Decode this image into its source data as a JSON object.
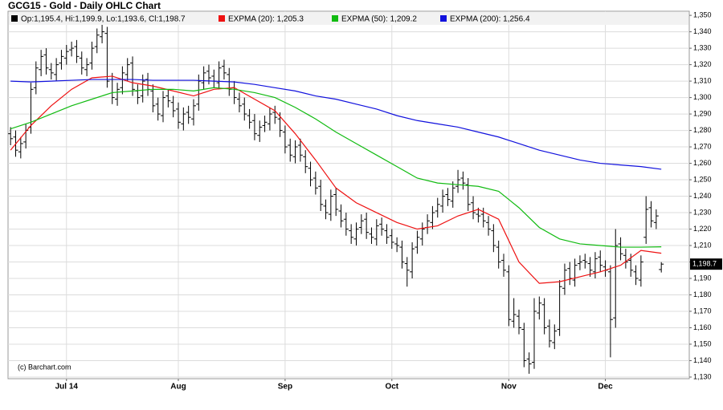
{
  "chart_data": {
    "type": "ohlc",
    "title": "GCG15 - Gold - Daily OHLC Chart",
    "annotation": "(c) Barchart.com",
    "grid": true,
    "ohlc_name": "Op:1,195.4, Hi:1,199.9, Lo:1,193.6, Cl:1,198.7",
    "ohlc_color": "#000000",
    "open": [
      1278,
      1276,
      1267,
      1273,
      1282,
      1306,
      1317,
      1326,
      1317,
      1314,
      1321,
      1324,
      1329,
      1331,
      1324,
      1317,
      1321,
      1331,
      1337,
      1339,
      1311,
      1299,
      1306,
      1314,
      1321,
      1304,
      1301,
      1311,
      1304,
      1296,
      1289,
      1301,
      1297,
      1293,
      1284,
      1291,
      1287,
      1296,
      1309,
      1316,
      1313,
      1309,
      1319,
      1314,
      1306,
      1299,
      1296,
      1289,
      1286,
      1277,
      1283,
      1284,
      1291,
      1287,
      1279,
      1271,
      1264,
      1271,
      1264,
      1257,
      1251,
      1246,
      1234,
      1229,
      1241,
      1231,
      1226,
      1219,
      1214,
      1221,
      1226,
      1217,
      1214,
      1223,
      1219,
      1216,
      1211,
      1209,
      1199,
      1194,
      1209,
      1214,
      1221,
      1224,
      1231,
      1234,
      1241,
      1237,
      1246,
      1251,
      1247,
      1236,
      1229,
      1229,
      1224,
      1219,
      1209,
      1201,
      1194,
      1164,
      1167,
      1159,
      1141,
      1139,
      1169,
      1174,
      1161,
      1151,
      1159,
      1184,
      1196,
      1189,
      1199,
      1201,
      1199,
      1194,
      1203,
      1197,
      1194,
      1166,
      1211,
      1204,
      1201,
      1194,
      1189,
      1215,
      1233,
      1224,
      1195.4
    ],
    "high": [
      1282,
      1280,
      1276,
      1284,
      1309,
      1322,
      1329,
      1330,
      1321,
      1324,
      1329,
      1332,
      1334,
      1335,
      1328,
      1324,
      1334,
      1342,
      1345,
      1343,
      1315,
      1309,
      1319,
      1324,
      1325,
      1308,
      1314,
      1315,
      1308,
      1300,
      1304,
      1305,
      1301,
      1297,
      1294,
      1295,
      1299,
      1314,
      1319,
      1320,
      1317,
      1322,
      1323,
      1318,
      1310,
      1303,
      1300,
      1293,
      1290,
      1286,
      1289,
      1294,
      1295,
      1291,
      1283,
      1275,
      1274,
      1275,
      1268,
      1261,
      1255,
      1250,
      1238,
      1244,
      1245,
      1235,
      1230,
      1223,
      1224,
      1229,
      1230,
      1221,
      1226,
      1227,
      1223,
      1220,
      1215,
      1213,
      1203,
      1212,
      1219,
      1224,
      1229,
      1234,
      1239,
      1244,
      1245,
      1249,
      1256,
      1255,
      1251,
      1240,
      1233,
      1233,
      1228,
      1223,
      1213,
      1205,
      1198,
      1178,
      1171,
      1163,
      1145,
      1178,
      1179,
      1178,
      1165,
      1162,
      1189,
      1199,
      1200,
      1202,
      1204,
      1205,
      1203,
      1206,
      1207,
      1201,
      1198,
      1220,
      1215,
      1208,
      1205,
      1198,
      1204,
      1240,
      1237,
      1232,
      1199.9
    ],
    "low": [
      1271,
      1264,
      1263,
      1269,
      1278,
      1302,
      1313,
      1314,
      1311,
      1310,
      1317,
      1320,
      1325,
      1321,
      1314,
      1313,
      1317,
      1327,
      1333,
      1306,
      1296,
      1295,
      1302,
      1310,
      1301,
      1296,
      1297,
      1301,
      1291,
      1286,
      1285,
      1294,
      1288,
      1281,
      1280,
      1284,
      1283,
      1292,
      1305,
      1308,
      1306,
      1305,
      1311,
      1301,
      1296,
      1291,
      1286,
      1281,
      1274,
      1273,
      1279,
      1280,
      1284,
      1276,
      1266,
      1261,
      1260,
      1261,
      1254,
      1246,
      1241,
      1231,
      1226,
      1225,
      1228,
      1221,
      1216,
      1211,
      1210,
      1217,
      1214,
      1211,
      1210,
      1216,
      1211,
      1208,
      1206,
      1196,
      1185,
      1190,
      1205,
      1210,
      1217,
      1220,
      1227,
      1230,
      1234,
      1233,
      1242,
      1244,
      1231,
      1226,
      1224,
      1221,
      1216,
      1206,
      1196,
      1191,
      1161,
      1160,
      1156,
      1136,
      1132,
      1135,
      1165,
      1156,
      1148,
      1147,
      1155,
      1180,
      1186,
      1185,
      1195,
      1196,
      1191,
      1190,
      1194,
      1191,
      1142,
      1160,
      1201,
      1196,
      1191,
      1186,
      1185,
      1211,
      1221,
      1220,
      1193.6
    ],
    "close": [
      1275,
      1268,
      1272,
      1280,
      1305,
      1318,
      1325,
      1318,
      1315,
      1320,
      1325,
      1328,
      1330,
      1325,
      1318,
      1320,
      1330,
      1338,
      1340,
      1310,
      1300,
      1305,
      1315,
      1320,
      1305,
      1300,
      1310,
      1305,
      1295,
      1290,
      1300,
      1298,
      1292,
      1285,
      1290,
      1288,
      1295,
      1310,
      1315,
      1312,
      1310,
      1318,
      1315,
      1305,
      1300,
      1295,
      1290,
      1285,
      1278,
      1282,
      1285,
      1290,
      1288,
      1280,
      1270,
      1265,
      1270,
      1265,
      1258,
      1250,
      1245,
      1235,
      1230,
      1240,
      1232,
      1225,
      1220,
      1215,
      1220,
      1225,
      1218,
      1215,
      1222,
      1220,
      1215,
      1212,
      1210,
      1200,
      1195,
      1208,
      1215,
      1220,
      1225,
      1230,
      1235,
      1240,
      1238,
      1245,
      1250,
      1248,
      1235,
      1230,
      1228,
      1225,
      1220,
      1210,
      1200,
      1195,
      1165,
      1168,
      1160,
      1140,
      1138,
      1170,
      1175,
      1160,
      1152,
      1158,
      1185,
      1195,
      1190,
      1198,
      1200,
      1200,
      1195,
      1202,
      1198,
      1195,
      1165,
      1210,
      1205,
      1200,
      1195,
      1190,
      1200,
      1232,
      1225,
      1228,
      1198.7
    ],
    "last_price": {
      "value": 1198.7,
      "label": "1,198.7"
    },
    "series": [
      {
        "name": "EXPMA (20): 1,205.3",
        "color": "#ee1111",
        "x": [
          0,
          4,
          8,
          12,
          16,
          20,
          24,
          28,
          32,
          36,
          40,
          44,
          48,
          52,
          56,
          60,
          64,
          68,
          72,
          76,
          80,
          84,
          88,
          92,
          96,
          100,
          104,
          108,
          112,
          116,
          120,
          124,
          128
        ],
        "values": [
          1268,
          1283,
          1295,
          1305,
          1312,
          1313,
          1309,
          1307,
          1304,
          1301,
          1305,
          1306,
          1299,
          1292,
          1278,
          1262,
          1245,
          1236,
          1230,
          1224,
          1220,
          1222,
          1228,
          1232,
          1226,
          1200,
          1187,
          1188,
          1191,
          1194,
          1198,
          1207,
          1205.3
        ]
      },
      {
        "name": "EXPMA (50): 1,209.2",
        "color": "#11bb11",
        "x": [
          0,
          4,
          8,
          12,
          16,
          20,
          24,
          28,
          32,
          36,
          40,
          44,
          48,
          52,
          56,
          60,
          64,
          68,
          72,
          76,
          80,
          84,
          88,
          92,
          96,
          100,
          104,
          108,
          112,
          116,
          120,
          124,
          128
        ],
        "values": [
          1281,
          1285,
          1290,
          1295,
          1299,
          1303,
          1304,
          1305,
          1305,
          1304,
          1306,
          1305,
          1303,
          1300,
          1294,
          1287,
          1279,
          1272,
          1265,
          1258,
          1251,
          1248,
          1247,
          1246,
          1243,
          1233,
          1221,
          1214,
          1211,
          1210,
          1209,
          1209,
          1209.2
        ]
      },
      {
        "name": "EXPMA (200): 1,256.4",
        "color": "#1111dd",
        "x": [
          0,
          4,
          8,
          12,
          16,
          20,
          24,
          28,
          32,
          36,
          40,
          44,
          48,
          52,
          56,
          60,
          64,
          68,
          72,
          76,
          80,
          84,
          88,
          92,
          96,
          100,
          104,
          108,
          112,
          116,
          120,
          124,
          128
        ],
        "values": [
          1310,
          1309.5,
          1310,
          1310.5,
          1311,
          1311,
          1311,
          1310.5,
          1310.5,
          1310.5,
          1310,
          1309.5,
          1308,
          1306,
          1304,
          1301,
          1299,
          1296,
          1293,
          1289,
          1286,
          1284,
          1282,
          1279,
          1276,
          1272,
          1268,
          1265,
          1262,
          1260,
          1259,
          1258,
          1256.4
        ]
      }
    ],
    "xlim": [
      -0.5,
      133.5
    ],
    "xticks": [
      {
        "value": 11,
        "label": "Jul 14"
      },
      {
        "value": 33,
        "label": "Aug"
      },
      {
        "value": 54,
        "label": "Sep"
      },
      {
        "value": 75,
        "label": "Oct"
      },
      {
        "value": 98,
        "label": "Nov"
      },
      {
        "value": 117,
        "label": "Dec"
      }
    ],
    "ylim": [
      1129,
      1352.5
    ],
    "yticks": [
      {
        "value": 1130,
        "label": "1,130"
      },
      {
        "value": 1140,
        "label": "1,140"
      },
      {
        "value": 1150,
        "label": "1,150"
      },
      {
        "value": 1160,
        "label": "1,160"
      },
      {
        "value": 1170,
        "label": "1,170"
      },
      {
        "value": 1180,
        "label": "1,180"
      },
      {
        "value": 1190,
        "label": "1,190"
      },
      {
        "value": 1200,
        "label": "1,200"
      },
      {
        "value": 1210,
        "label": "1,210"
      },
      {
        "value": 1220,
        "label": "1,220"
      },
      {
        "value": 1230,
        "label": "1,230"
      },
      {
        "value": 1240,
        "label": "1,240"
      },
      {
        "value": 1250,
        "label": "1,250"
      },
      {
        "value": 1260,
        "label": "1,260"
      },
      {
        "value": 1270,
        "label": "1,270"
      },
      {
        "value": 1280,
        "label": "1,280"
      },
      {
        "value": 1290,
        "label": "1,290"
      },
      {
        "value": 1300,
        "label": "1,300"
      },
      {
        "value": 1310,
        "label": "1,310"
      },
      {
        "value": 1320,
        "label": "1,320"
      },
      {
        "value": 1330,
        "label": "1,330"
      },
      {
        "value": 1340,
        "label": "1,340"
      },
      {
        "value": 1350,
        "label": "1,350"
      }
    ]
  }
}
